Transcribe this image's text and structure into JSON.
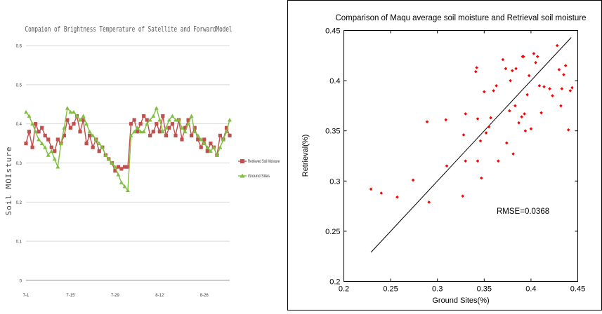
{
  "charts": [
    {
      "type": "line",
      "title": "Compaion of Brightness Temperature of Satellite and ForwardModel",
      "ylabel": "Soil MOIsture",
      "xlabel": "",
      "ylim": [
        0,
        0.6
      ],
      "yticks": [
        "0",
        "0.1",
        "0.2",
        "0.3",
        "0.4",
        "0.5",
        "0.6"
      ],
      "xticks": [
        "7-1",
        "7-15",
        "7-29",
        "8-12",
        "8-26"
      ],
      "grid": "horizontal",
      "legend_position": "right",
      "series": [
        {
          "name": "Retrieved Soil Moisture",
          "color": "#c0504d",
          "marker": "square",
          "values": [
            0.35,
            0.38,
            0.34,
            0.4,
            0.38,
            0.39,
            0.37,
            0.36,
            0.34,
            0.33,
            0.36,
            0.35,
            0.37,
            0.41,
            0.39,
            0.4,
            0.42,
            0.38,
            0.41,
            0.35,
            0.37,
            0.34,
            0.36,
            0.33,
            0.34,
            0.32,
            0.31,
            0.3,
            0.28,
            0.29,
            0.285,
            0.29,
            0.29,
            0.4,
            0.41,
            0.38,
            0.4,
            0.42,
            0.41,
            0.37,
            0.38,
            0.4,
            0.38,
            0.42,
            0.37,
            0.39,
            0.4,
            0.37,
            0.41,
            0.36,
            0.39,
            0.41,
            0.37,
            0.39,
            0.36,
            0.34,
            0.36,
            0.33,
            0.35,
            0.34,
            0.32,
            0.37,
            0.36,
            0.39,
            0.37
          ]
        },
        {
          "name": "Ground Sites",
          "color": "#7fbf3f",
          "marker": "triangle",
          "values": [
            0.43,
            0.42,
            0.4,
            0.38,
            0.36,
            0.35,
            0.34,
            0.32,
            0.33,
            0.31,
            0.29,
            0.35,
            0.39,
            0.44,
            0.43,
            0.43,
            0.42,
            0.41,
            0.42,
            0.4,
            0.38,
            0.37,
            0.36,
            0.35,
            0.34,
            0.32,
            0.31,
            0.3,
            0.29,
            0.27,
            0.25,
            0.24,
            0.23,
            0.37,
            0.38,
            0.39,
            0.38,
            0.38,
            0.4,
            0.41,
            0.42,
            0.44,
            0.41,
            0.38,
            0.39,
            0.41,
            0.42,
            0.41,
            0.41,
            0.39,
            0.38,
            0.4,
            0.42,
            0.38,
            0.37,
            0.36,
            0.35,
            0.34,
            0.33,
            0.34,
            0.32,
            0.34,
            0.36,
            0.38,
            0.41
          ]
        }
      ]
    },
    {
      "type": "scatter",
      "title": "Comparison of Maqu average soil moisture and Retrieval soil moisture",
      "xlabel": "Ground Sites(%)",
      "ylabel": "Retrieval(%)",
      "xlim": [
        0.2,
        0.45
      ],
      "ylim": [
        0.2,
        0.45
      ],
      "xticks": [
        "0.2",
        "0.25",
        "0.3",
        "0.35",
        "0.4",
        "0.45"
      ],
      "yticks": [
        "0.2",
        "0.25",
        "0.3",
        "0.35",
        "0.4",
        "0.45"
      ],
      "annotation": "RMSE=0.0368",
      "point_color": "#ff0000",
      "line_color": "#000000",
      "fit_line": [
        [
          0.229,
          0.229
        ],
        [
          0.443,
          0.443
        ]
      ],
      "points": [
        [
          0.229,
          0.292
        ],
        [
          0.24,
          0.288
        ],
        [
          0.257,
          0.284
        ],
        [
          0.274,
          0.301
        ],
        [
          0.289,
          0.359
        ],
        [
          0.291,
          0.279
        ],
        [
          0.309,
          0.361
        ],
        [
          0.31,
          0.315
        ],
        [
          0.327,
          0.285
        ],
        [
          0.328,
          0.346
        ],
        [
          0.33,
          0.367
        ],
        [
          0.33,
          0.32
        ],
        [
          0.341,
          0.409
        ],
        [
          0.342,
          0.413
        ],
        [
          0.343,
          0.362
        ],
        [
          0.343,
          0.32
        ],
        [
          0.346,
          0.34
        ],
        [
          0.347,
          0.303
        ],
        [
          0.35,
          0.389
        ],
        [
          0.352,
          0.348
        ],
        [
          0.355,
          0.354
        ],
        [
          0.357,
          0.363
        ],
        [
          0.36,
          0.39
        ],
        [
          0.363,
          0.395
        ],
        [
          0.365,
          0.32
        ],
        [
          0.37,
          0.421
        ],
        [
          0.373,
          0.412
        ],
        [
          0.374,
          0.338
        ],
        [
          0.377,
          0.37
        ],
        [
          0.378,
          0.4
        ],
        [
          0.38,
          0.41
        ],
        [
          0.381,
          0.327
        ],
        [
          0.383,
          0.375
        ],
        [
          0.384,
          0.412
        ],
        [
          0.387,
          0.358
        ],
        [
          0.39,
          0.364
        ],
        [
          0.391,
          0.424
        ],
        [
          0.392,
          0.424
        ],
        [
          0.393,
          0.367
        ],
        [
          0.394,
          0.35
        ],
        [
          0.396,
          0.386
        ],
        [
          0.398,
          0.405
        ],
        [
          0.4,
          0.352
        ],
        [
          0.403,
          0.427
        ],
        [
          0.405,
          0.418
        ],
        [
          0.407,
          0.424
        ],
        [
          0.409,
          0.395
        ],
        [
          0.411,
          0.368
        ],
        [
          0.414,
          0.394
        ],
        [
          0.42,
          0.392
        ],
        [
          0.423,
          0.385
        ],
        [
          0.428,
          0.435
        ],
        [
          0.43,
          0.411
        ],
        [
          0.432,
          0.375
        ],
        [
          0.433,
          0.392
        ],
        [
          0.435,
          0.406
        ],
        [
          0.437,
          0.415
        ],
        [
          0.44,
          0.351
        ],
        [
          0.442,
          0.39
        ],
        [
          0.444,
          0.393
        ]
      ]
    }
  ]
}
